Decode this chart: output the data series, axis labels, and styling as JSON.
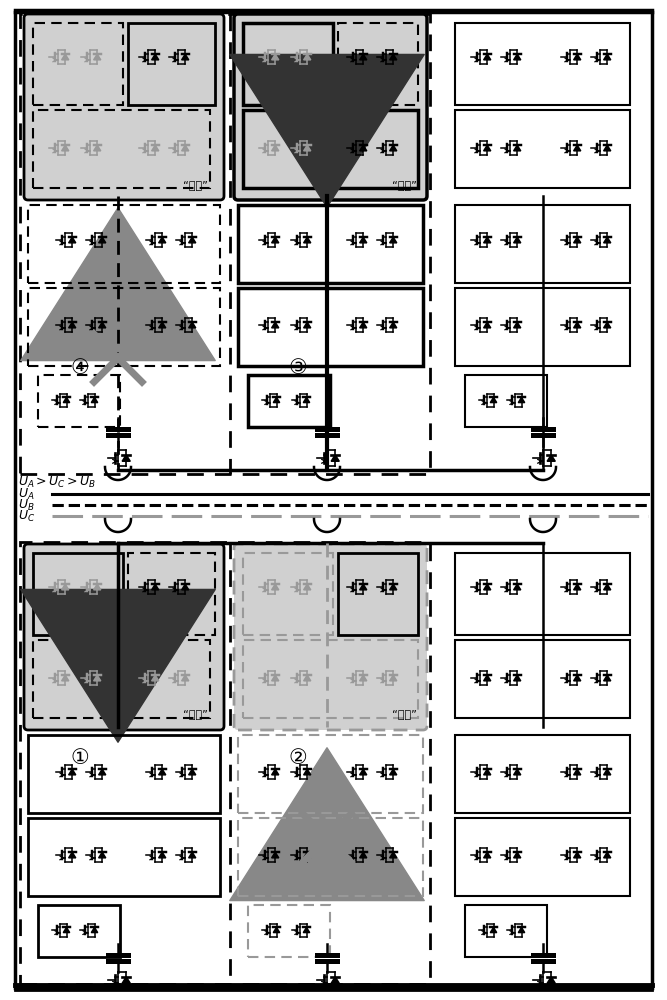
{
  "fig_width": 6.67,
  "fig_height": 10.0,
  "bg_color": "#ffffff",
  "gray_color": "#999999",
  "dark_gray": "#555555",
  "labels": {
    "qiechu": "“切除”",
    "circle1": "①",
    "circle2": "②",
    "circle3": "③",
    "circle4": "④",
    "UA_gt": "$U_A$$>$$U_C$$>$$U_B$",
    "UA": "$U_A$",
    "UB": "$U_B$",
    "UC": "$U_C$"
  }
}
